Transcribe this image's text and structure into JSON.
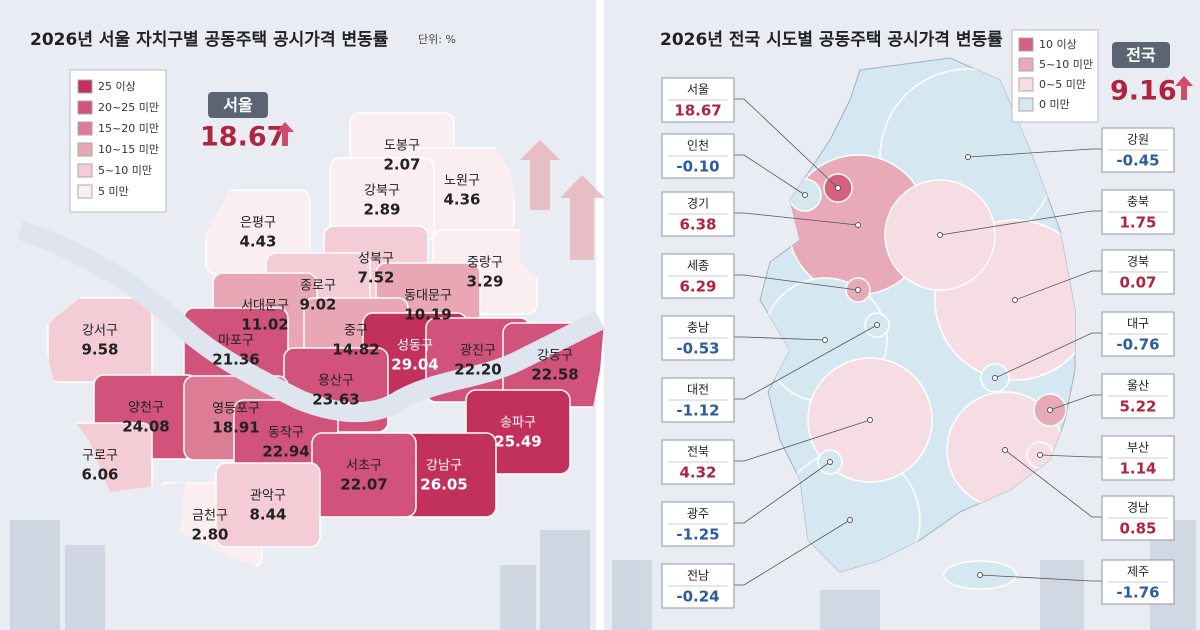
{
  "left": {
    "title": "2026년 서울 자치구별 공동주택 공시가격 변동률",
    "unit": "단위: %",
    "legend": {
      "labels": [
        "25 이상",
        "20~25 미만",
        "15~20 미만",
        "10~15 미만",
        "5~10 미만",
        "5 미만"
      ],
      "colors": [
        "#c2315c",
        "#d1527a",
        "#dd7c95",
        "#e9a7b6",
        "#f3ccd5",
        "#fbeef1"
      ]
    },
    "headline": {
      "label": "서울",
      "value": 18.67
    },
    "districts": {
      "names": [
        "도봉구",
        "노원구",
        "강북구",
        "은평구",
        "성북구",
        "중랑구",
        "종로구",
        "서대문구",
        "동대문구",
        "강서구",
        "마포구",
        "중구",
        "성동구",
        "광진구",
        "강동구",
        "용산구",
        "양천구",
        "영등포구",
        "동작구",
        "송파구",
        "강남구",
        "서초구",
        "구로구",
        "금천구",
        "관악구"
      ],
      "values": [
        2.07,
        4.36,
        2.89,
        4.43,
        7.52,
        3.29,
        9.02,
        11.02,
        10.19,
        9.58,
        21.36,
        14.82,
        29.04,
        22.2,
        22.58,
        23.63,
        24.08,
        18.91,
        22.94,
        25.49,
        26.05,
        22.07,
        6.06,
        2.8,
        8.44
      ],
      "value_labels": [
        "2.07",
        "4.36",
        "2.89",
        "4.43",
        "7.52",
        "3.29",
        "9.02",
        "11.02",
        "10.19",
        "9.58",
        "21.36",
        "14.82",
        "29.04",
        "22.20",
        "22.58",
        "23.63",
        "24.08",
        "18.91",
        "22.94",
        "25.49",
        "26.05",
        "22.07",
        "6.06",
        "2.80",
        "8.44"
      ],
      "colors": [
        "#fbeef1",
        "#fbeef1",
        "#fbeef1",
        "#fbeef1",
        "#f3ccd5",
        "#fbeef1",
        "#f3ccd5",
        "#e9a7b6",
        "#e9a7b6",
        "#f3ccd5",
        "#d1527a",
        "#e9a7b6",
        "#c2315c",
        "#d1527a",
        "#d1527a",
        "#d1527a",
        "#d1527a",
        "#dd7c95",
        "#d1527a",
        "#c2315c",
        "#c2315c",
        "#d1527a",
        "#f3ccd5",
        "#fbeef1",
        "#f3ccd5"
      ]
    }
  },
  "right": {
    "title": "2026년 전국 시도별 공동주택 공시가격 변동률",
    "legend": {
      "labels": [
        "10 이상",
        "5~10 미만",
        "0~5 미만",
        "0 미만"
      ],
      "colors": [
        "#d3617f",
        "#e8a9b8",
        "#f5dde3",
        "#d5e7f1"
      ]
    },
    "headline": {
      "label": "전국",
      "value": 9.16
    },
    "regions": {
      "names": [
        "서울",
        "인천",
        "경기",
        "세종",
        "충남",
        "대전",
        "전북",
        "광주",
        "전남",
        "강원",
        "충북",
        "경북",
        "대구",
        "울산",
        "부산",
        "경남",
        "제주"
      ],
      "values": [
        18.67,
        -0.1,
        6.38,
        6.29,
        -0.53,
        -1.12,
        4.32,
        -1.25,
        -0.24,
        -0.45,
        1.75,
        0.07,
        -0.76,
        5.22,
        1.14,
        0.85,
        -1.76
      ],
      "value_labels": [
        "18.67",
        "-0.10",
        "6.38",
        "6.29",
        "-0.53",
        "-1.12",
        "4.32",
        "-1.25",
        "-0.24",
        "-0.45",
        "1.75",
        "0.07",
        "-0.76",
        "5.22",
        "1.14",
        "0.85",
        "-1.76"
      ],
      "colors": [
        "#d3617f",
        "#d5e7f1",
        "#e8a9b8",
        "#e8a9b8",
        "#d5e7f1",
        "#d5e7f1",
        "#f5dde3",
        "#d5e7f1",
        "#d5e7f1",
        "#d5e7f1",
        "#f5dde3",
        "#f5dde3",
        "#d5e7f1",
        "#e8a9b8",
        "#f5dde3",
        "#f5dde3",
        "#d5e7f1"
      ]
    }
  }
}
